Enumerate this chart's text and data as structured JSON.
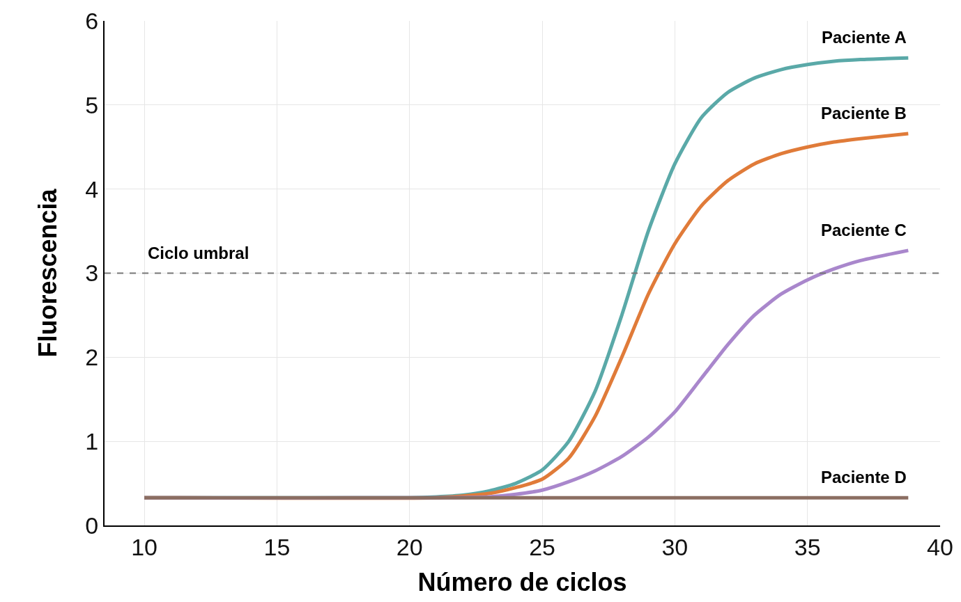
{
  "chart_data": {
    "type": "line",
    "xlabel": "Número de ciclos",
    "ylabel": "Fluorescencia",
    "xlim": [
      8.5,
      40
    ],
    "xticks": [
      10,
      15,
      20,
      25,
      30,
      35,
      40
    ],
    "ylim": [
      0,
      6
    ],
    "yticks": [
      0,
      1,
      2,
      3,
      4,
      5,
      6
    ],
    "grid": true,
    "legend": false,
    "marker": "none",
    "line_style": "solid",
    "ref_lines": [
      {
        "axis": "y",
        "value": 3,
        "label": "Ciclo umbral",
        "color": "#777777",
        "line_style": "dashed"
      }
    ],
    "series": [
      {
        "name": "Paciente A",
        "color": "#5aa9a8",
        "x": [
          10,
          20,
          21,
          22,
          23,
          24,
          25,
          26,
          27,
          28,
          29,
          30,
          31,
          32,
          33,
          34,
          35,
          36,
          37,
          38.8
        ],
        "values": [
          0.33,
          0.33,
          0.34,
          0.36,
          0.41,
          0.5,
          0.66,
          1.0,
          1.6,
          2.5,
          3.5,
          4.3,
          4.85,
          5.15,
          5.32,
          5.42,
          5.48,
          5.52,
          5.54,
          5.56
        ]
      },
      {
        "name": "Paciente B",
        "color": "#e07b39",
        "x": [
          10,
          21,
          22,
          23,
          24,
          25,
          26,
          27,
          28,
          29,
          30,
          31,
          32,
          33,
          34,
          35,
          36,
          37,
          38.8
        ],
        "values": [
          0.33,
          0.33,
          0.35,
          0.38,
          0.45,
          0.55,
          0.8,
          1.3,
          2.0,
          2.75,
          3.35,
          3.8,
          4.1,
          4.3,
          4.42,
          4.5,
          4.56,
          4.6,
          4.66
        ]
      },
      {
        "name": "Paciente C",
        "color": "#a987cc",
        "x": [
          10,
          23,
          24,
          25,
          26,
          27,
          28,
          29,
          30,
          31,
          32,
          33,
          34,
          35,
          36,
          37,
          38.8
        ],
        "values": [
          0.33,
          0.34,
          0.37,
          0.42,
          0.52,
          0.65,
          0.82,
          1.05,
          1.35,
          1.75,
          2.15,
          2.5,
          2.75,
          2.92,
          3.05,
          3.15,
          3.27
        ]
      },
      {
        "name": "Paciente D",
        "color": "#8b6e62",
        "x": [
          10,
          38.8
        ],
        "values": [
          0.33,
          0.33
        ]
      }
    ]
  }
}
